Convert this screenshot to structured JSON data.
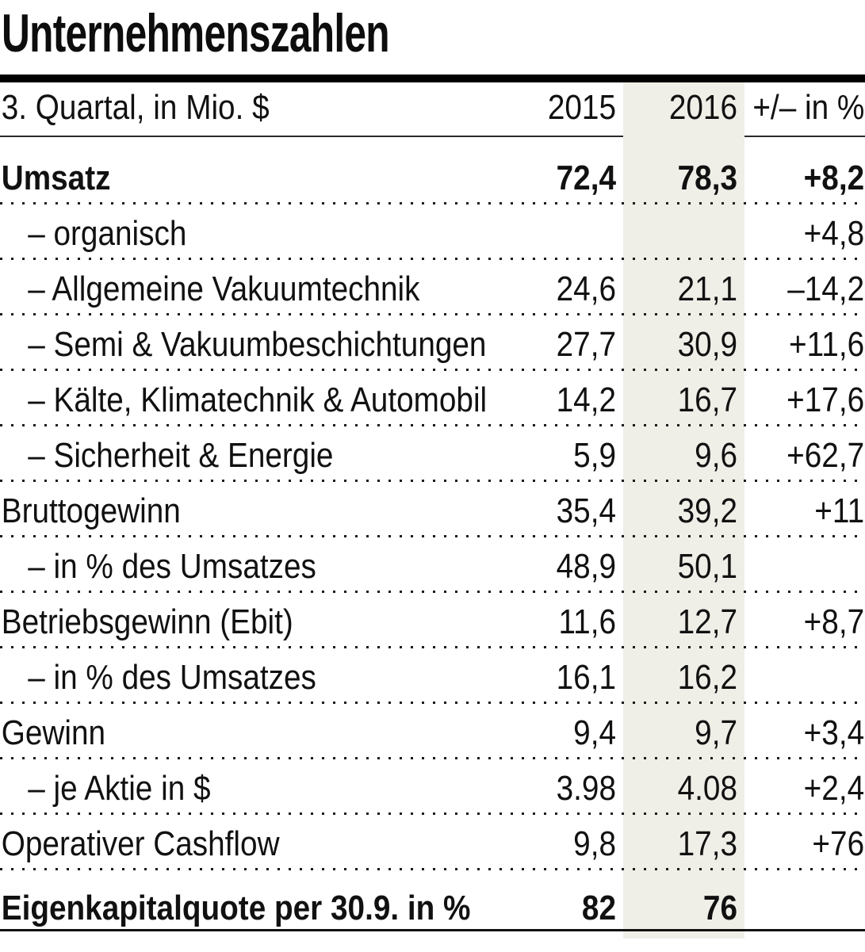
{
  "chart_data": {
    "type": "table",
    "title": "Unternehmenszahlen",
    "columns": {
      "label": "3. Quartal, in Mio. $",
      "y2015": "2015",
      "y2016": "2016",
      "change": "+/– in %"
    },
    "rows": [
      {
        "label": "Umsatz",
        "y2015": "72,4",
        "y2016": "78,3",
        "change": "+8,2"
      },
      {
        "label": "– organisch",
        "y2015": "",
        "y2016": "",
        "change": "+4,8"
      },
      {
        "label": "– Allgemeine Vakuumtechnik",
        "y2015": "24,6",
        "y2016": "21,1",
        "change": "–14,2"
      },
      {
        "label": "– Semi & Vakuumbeschichtungen",
        "y2015": "27,7",
        "y2016": "30,9",
        "change": "+11,6"
      },
      {
        "label": "– Kälte, Klimatechnik & Automobil",
        "y2015": "14,2",
        "y2016": "16,7",
        "change": "+17,6"
      },
      {
        "label": "– Sicherheit & Energie",
        "y2015": "5,9",
        "y2016": "9,6",
        "change": "+62,7"
      },
      {
        "label": "Bruttogewinn",
        "y2015": "35,4",
        "y2016": "39,2",
        "change": "+11"
      },
      {
        "label": "– in % des Umsatzes",
        "y2015": "48,9",
        "y2016": "50,1",
        "change": ""
      },
      {
        "label": "Betriebsgewinn (Ebit)",
        "y2015": "11,6",
        "y2016": "12,7",
        "change": "+8,7"
      },
      {
        "label": "– in % des Umsatzes",
        "y2015": "16,1",
        "y2016": "16,2",
        "change": ""
      },
      {
        "label": "Gewinn",
        "y2015": "9,4",
        "y2016": "9,7",
        "change": "+3,4"
      },
      {
        "label": "– je Aktie in $",
        "y2015": "3.98",
        "y2016": "4.08",
        "change": "+2,4"
      },
      {
        "label": "Operativer Cashflow",
        "y2015": "9,8",
        "y2016": "17,3",
        "change": "+76"
      },
      {
        "label": "Eigenkapitalquote per 30.9. in %",
        "y2015": "82",
        "y2016": "76",
        "change": ""
      }
    ],
    "layout": {
      "highlight_column": "2016",
      "separator_style": "dotted",
      "legend_position": "none",
      "grid": "horizontal-dotted"
    },
    "colors": {
      "highlight_band": "#efeee7",
      "text": "#111111",
      "rule": "#000000"
    }
  }
}
